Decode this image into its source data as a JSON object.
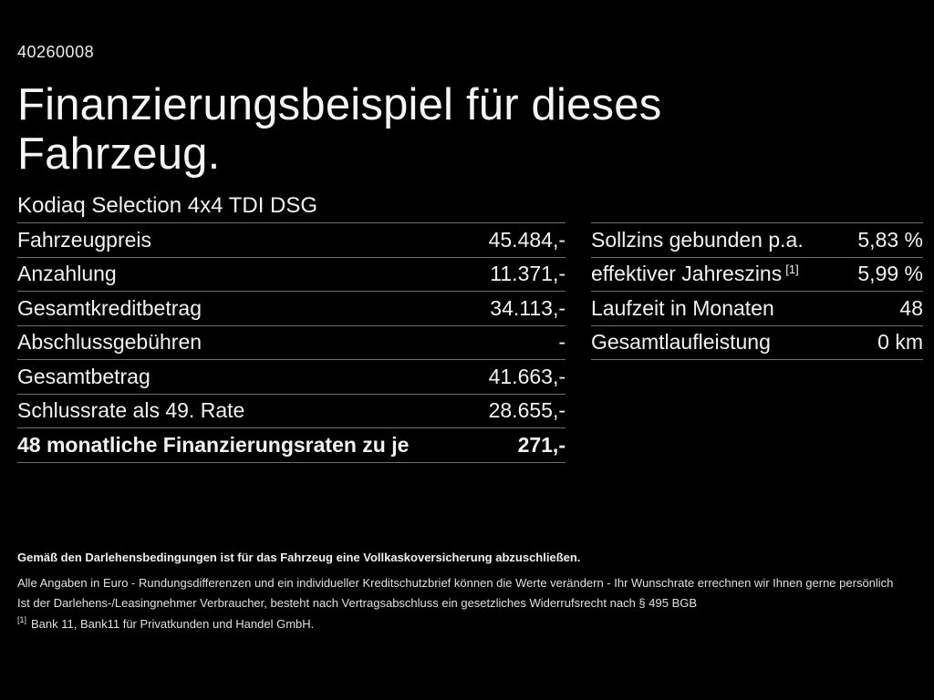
{
  "page": {
    "doc_number": "40260008",
    "title": "Finanzierungsbeispiel für dieses Fahrzeug.",
    "subtitle": "Kodiaq Selection 4x4 TDI DSG"
  },
  "finance_table": {
    "rows": [
      {
        "label": "Fahrzeugpreis",
        "value": "45.484,-"
      },
      {
        "label": "Anzahlung",
        "value": "11.371,-"
      },
      {
        "label": "Gesamtkreditbetrag",
        "value": "34.113,-"
      },
      {
        "label": "Abschlussgebühren",
        "value": "-"
      },
      {
        "label": "Gesamtbetrag",
        "value": "41.663,-"
      },
      {
        "label": "Schlussrate als 49. Rate",
        "value": "28.655,-"
      },
      {
        "label": "48 monatliche Finanzierungsraten zu je",
        "value": "271,-"
      }
    ]
  },
  "conditions_table": {
    "rows": [
      {
        "label": "Sollzins gebunden p.a.",
        "sup": "",
        "value": "5,83 %"
      },
      {
        "label": "effektiver Jahreszins",
        "sup": "[1]",
        "value": "5,99 %"
      },
      {
        "label": "Laufzeit in Monaten",
        "sup": "",
        "value": "48"
      },
      {
        "label": "Gesamtlaufleistung",
        "sup": "",
        "value": "0 km"
      }
    ]
  },
  "footer": {
    "insurance_note": "Gemäß den Darlehensbedingungen ist für das Fahrzeug eine Vollkaskoversicherung abzuschließen.",
    "disclaimer_1": "Alle Angaben in Euro - Rundungsdifferenzen und ein individueller Kreditschutzbrief können die Werte verändern - Ihr Wunschrate errechnen wir Ihnen gerne persönlich",
    "disclaimer_2": "Ist der Darlehens-/Leasingnehmer Verbraucher, besteht nach Vertragsabschluss ein gesetzliches Widerrufsrecht nach § 495 BGB",
    "footnote_marker": "[1]",
    "footnote_text": "Bank 11, Bank11 für Privatkunden und Handel GmbH."
  },
  "colors": {
    "background": "#000000",
    "text": "#f2f2f2",
    "divider": "#6f6f6f"
  }
}
